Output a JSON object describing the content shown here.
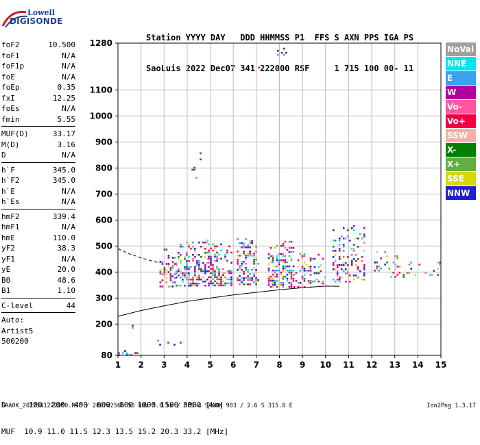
{
  "logo": {
    "line1": "Lowell",
    "line2": "DIGISONDE"
  },
  "header": {
    "line1": "Station YYYY DAY   DDD HHMMSS P1  FFS S AXN PPS IGA PS",
    "line2": "SaoLuis 2022 Dec07 341 222000 RSF     1 715 100 00- 11"
  },
  "params_groups": [
    [
      {
        "name": "foF2",
        "value": "10.500"
      },
      {
        "name": "foF1",
        "value": "N/A"
      },
      {
        "name": "foF1p",
        "value": "N/A"
      },
      {
        "name": "foE",
        "value": "N/A"
      },
      {
        "name": "foEp",
        "value": "0.35"
      },
      {
        "name": "fxI",
        "value": "12.25"
      },
      {
        "name": "foEs",
        "value": "N/A"
      },
      {
        "name": "fmin",
        "value": "5.55"
      }
    ],
    [
      {
        "name": "MUF(D)",
        "value": "33.17"
      },
      {
        "name": "M(D)",
        "value": "3.16"
      },
      {
        "name": "D",
        "value": "N/A"
      }
    ],
    [
      {
        "name": "h`F",
        "value": "345.0"
      },
      {
        "name": "h`F2",
        "value": "345.0"
      },
      {
        "name": "h`E",
        "value": "N/A"
      },
      {
        "name": "h`Es",
        "value": "N/A"
      }
    ],
    [
      {
        "name": "hmF2",
        "value": "339.4"
      },
      {
        "name": "hmF1",
        "value": "N/A"
      },
      {
        "name": "hmE",
        "value": "110.0"
      },
      {
        "name": "yF2",
        "value": "38.3"
      },
      {
        "name": "yF1",
        "value": "N/A"
      },
      {
        "name": "yE",
        "value": "20.0"
      },
      {
        "name": "B0",
        "value": "48.6"
      },
      {
        "name": "B1",
        "value": "1.10"
      }
    ],
    [
      {
        "name": "C-level",
        "value": "44"
      }
    ]
  ],
  "auto_lines": [
    "Auto:",
    "Artist5",
    "500200"
  ],
  "legend": [
    {
      "label": "NoVal",
      "color": "#a0a0a0"
    },
    {
      "label": "NNE",
      "color": "#00e5f0"
    },
    {
      "label": "E",
      "color": "#3aa0f0"
    },
    {
      "label": "W",
      "color": "#b000a0"
    },
    {
      "label": "Vo-",
      "color": "#ff55a0"
    },
    {
      "label": "Vo+",
      "color": "#f00040"
    },
    {
      "label": "SSW",
      "color": "#f4b0a8"
    },
    {
      "label": "X-",
      "color": "#008000"
    },
    {
      "label": "X+",
      "color": "#60b040"
    },
    {
      "label": "SSE",
      "color": "#d8d800"
    },
    {
      "label": "NNW",
      "color": "#2020d0"
    }
  ],
  "bottom_lines": [
    "D     100  200  400  600  800 1000 1500 3000 [km]",
    "MUF  10.9 11.0 11.5 12.3 13.5 15.2 20.3 33.2 [MHz]"
  ],
  "footer": "SAA0K_2022341222000.RSF / 280fx256h 50 kHz 5.0 km / DPS-4 SAA0K 903 / 2.6 S 315.8 E",
  "footer_right": "Ion2Png 1.3.17",
  "chart_data": {
    "type": "scatter",
    "xlim": [
      1,
      15
    ],
    "ylim": [
      80,
      1280
    ],
    "x_ticks": [
      1,
      2,
      3,
      4,
      5,
      6,
      7,
      8,
      9,
      10,
      11,
      12,
      13,
      14,
      15
    ],
    "y_ticks": [
      80,
      200,
      300,
      400,
      500,
      600,
      700,
      800,
      900,
      1000,
      1100,
      1280
    ],
    "grid": true,
    "clusters": [
      {
        "x": [
          2.8,
          3.5
        ],
        "y": [
          345,
          490
        ],
        "density": 0.55
      },
      {
        "x": [
          3.5,
          4.9
        ],
        "y": [
          345,
          525
        ],
        "density": 0.6
      },
      {
        "x": [
          4.9,
          5.9
        ],
        "y": [
          350,
          510
        ],
        "density": 0.55
      },
      {
        "x": [
          6.15,
          7.1
        ],
        "y": [
          350,
          530
        ],
        "density": 0.5
      },
      {
        "x": [
          7.5,
          8.6
        ],
        "y": [
          345,
          520
        ],
        "density": 0.55
      },
      {
        "x": [
          8.6,
          9.4
        ],
        "y": [
          345,
          480
        ],
        "density": 0.4
      },
      {
        "x": [
          9.4,
          10.0
        ],
        "y": [
          355,
          470
        ],
        "density": 0.25
      },
      {
        "x": [
          10.3,
          11.7
        ],
        "y": [
          360,
          580
        ],
        "density": 0.35
      },
      {
        "x": [
          12.1,
          13.4
        ],
        "y": [
          380,
          480
        ],
        "density": 0.25
      },
      {
        "x": [
          13.5,
          15.0
        ],
        "y": [
          385,
          440
        ],
        "density": 0.2
      },
      {
        "x": [
          1.0,
          2.1
        ],
        "y": [
          82,
          100
        ],
        "density": 0.3
      },
      {
        "x": [
          1.6,
          2.1
        ],
        "y": [
          180,
          205
        ],
        "density": 0.25
      },
      {
        "x": [
          2.7,
          3.7
        ],
        "y": [
          110,
          140
        ],
        "density": 0.2
      },
      {
        "x": [
          7.9,
          8.4
        ],
        "y": [
          1235,
          1270
        ],
        "density": 0.3
      },
      {
        "x": [
          6.9,
          7.1
        ],
        "y": [
          1180,
          1205
        ],
        "density": 0.2
      },
      {
        "x": [
          4.1,
          4.7
        ],
        "y": [
          760,
          860
        ],
        "density": 0.12
      }
    ],
    "dashed_curve": {
      "x": [
        1.0,
        1.5,
        2.0,
        2.5,
        2.8
      ],
      "y": [
        490,
        470,
        455,
        442,
        435
      ]
    },
    "solid_curve": {
      "x": [
        1.0,
        2.0,
        3.0,
        4.0,
        5.0,
        6.0,
        7.0,
        8.0,
        9.0,
        10.0,
        10.6
      ],
      "y": [
        230,
        252,
        270,
        287,
        300,
        312,
        322,
        332,
        340,
        346,
        345
      ]
    }
  }
}
